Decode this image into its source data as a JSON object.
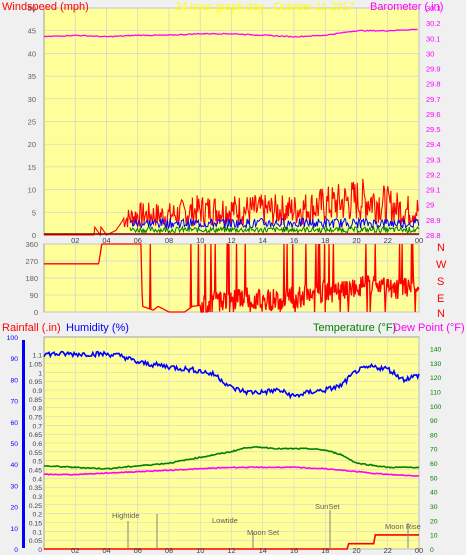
{
  "colors": {
    "windspeed": "#ff0000",
    "barometer": "#ff00ff",
    "title": "#ffff00",
    "direction": "#ff0000",
    "rainfall": "#ff0000",
    "humidity": "#0000ff",
    "temperature": "#008000",
    "dewpoint": "#ff00ff",
    "plot_bg": "#ffff99",
    "grid": "#d2d2d2",
    "panel_bg": "#f0f0f0",
    "gust_blue": "#0000ff",
    "avg_green": "#008000"
  },
  "chart_data": [
    {
      "type": "line",
      "title": "24 hour graph day : October 11 2017",
      "ylabel": "Windspeed (mph)",
      "y2label": "Barometer (.in)",
      "ylim": [
        0,
        50
      ],
      "y2lim": [
        28.8,
        30.3
      ],
      "yticks": [
        "0",
        "5",
        "10",
        "15",
        "20",
        "25",
        "30",
        "35",
        "40",
        "45",
        "50"
      ],
      "y2ticks": [
        "28.8",
        "28.9",
        "29",
        "29.1",
        "29.2",
        "29.3",
        "29.4",
        "29.5",
        "29.6",
        "29.7",
        "29.8",
        "29.9",
        "30",
        "30.1",
        "30.2",
        "30.3"
      ],
      "xticks": [
        "02",
        "04",
        "06",
        "08",
        "10",
        "12",
        "14",
        "16",
        "18",
        "20",
        "22",
        "00"
      ],
      "grid": true,
      "series": [
        {
          "name": "Windspeed (mph)",
          "x": [
            0,
            3.2,
            3.2,
            3.6,
            3.6,
            4,
            4,
            4.6,
            5,
            6,
            8,
            10,
            12,
            14,
            16,
            18,
            20,
            21,
            22,
            23,
            24
          ],
          "values": [
            0,
            0,
            2,
            0,
            2,
            0,
            0,
            1,
            3,
            4,
            4,
            5,
            5,
            5,
            5,
            6,
            7,
            7,
            6,
            5,
            5
          ]
        },
        {
          "name": "Barometer (.in)",
          "x": [
            0,
            2,
            4,
            6,
            8,
            10,
            12,
            14,
            16,
            18,
            20,
            22,
            24
          ],
          "values": [
            30.11,
            30.12,
            30.11,
            30.12,
            30.12,
            30.13,
            30.13,
            30.12,
            30.11,
            30.12,
            30.15,
            30.15,
            30.16
          ]
        }
      ]
    },
    {
      "type": "scatter",
      "ylabel_right": [
        "N",
        "W",
        "S",
        "E",
        "N"
      ],
      "ylim": [
        0,
        360
      ],
      "yticks": [
        "0",
        "90",
        "180",
        "270",
        "360"
      ],
      "xticks": [
        "02",
        "04",
        "06",
        "08",
        "10",
        "12",
        "14",
        "16",
        "18",
        "20",
        "22",
        "00"
      ],
      "series": [
        {
          "name": "Wind direction",
          "x": [
            0,
            3.5,
            3.7,
            6.2,
            6.3,
            7,
            7.3,
            8,
            9,
            9.5,
            10.5,
            11,
            12,
            13,
            14,
            15,
            16,
            17,
            18,
            19,
            20,
            21,
            22,
            23,
            24
          ],
          "values": [
            255,
            255,
            360,
            360,
            30,
            10,
            30,
            0,
            0,
            30,
            40,
            60,
            70,
            80,
            60,
            70,
            80,
            90,
            110,
            100,
            130,
            140,
            120,
            130,
            140
          ]
        }
      ]
    },
    {
      "type": "line",
      "ylabel": "Rainfall (.in)",
      "ylabel2": "Humidity (%)",
      "y3label": "Temperature (°F)",
      "y4label": "Dew Point (°F)",
      "annotations": [
        "Hightide",
        "Lowtide",
        "Moon Set",
        "SunSet",
        "Moon Rise"
      ],
      "rain_ylim": [
        0,
        1.2
      ],
      "rain_ticks": [
        "0",
        "0.05",
        "0.1",
        "0.15",
        "0.2",
        "0.25",
        "0.3",
        "0.35",
        "0.4",
        "0.45",
        "0.5",
        "0.55",
        "0.6",
        "0.65",
        "0.7",
        "0.75",
        "0.8",
        "0.85",
        "0.9",
        "0.95",
        "1",
        "1.05",
        "1.1"
      ],
      "hum_ylim": [
        0,
        100
      ],
      "hum_ticks": [
        "0",
        "10",
        "20",
        "30",
        "40",
        "50",
        "60",
        "70",
        "80",
        "90",
        "100"
      ],
      "temp_ylim": [
        0,
        148
      ],
      "temp_ticks": [
        "0",
        "10",
        "20",
        "30",
        "40",
        "50",
        "60",
        "70",
        "80",
        "90",
        "100",
        "110",
        "120",
        "130",
        "140"
      ],
      "xticks": [
        "02",
        "04",
        "06",
        "08",
        "10",
        "12",
        "14",
        "16",
        "18",
        "20",
        "22",
        "00"
      ],
      "grid": true,
      "series": [
        {
          "name": "Humidity (%)",
          "axis": "hum",
          "x": [
            0,
            2,
            4,
            5,
            6,
            8,
            10,
            11,
            12,
            13,
            14,
            15,
            16,
            17,
            18,
            19,
            20,
            21,
            22,
            23,
            24
          ],
          "values": [
            92,
            92,
            92,
            91,
            88,
            86,
            84,
            82,
            76,
            74,
            74,
            75,
            72,
            74,
            75,
            77,
            84,
            86,
            85,
            80,
            82
          ]
        },
        {
          "name": "Temperature (°F)",
          "axis": "temp",
          "x": [
            0,
            2,
            4,
            6,
            8,
            10,
            12,
            13,
            14,
            15,
            16,
            17,
            18,
            19,
            20,
            22,
            24
          ],
          "values": [
            58,
            57,
            56,
            58,
            60,
            64,
            68,
            71,
            71,
            70,
            70,
            70,
            69,
            66,
            60,
            57,
            57
          ]
        },
        {
          "name": "Dew Point (°F)",
          "axis": "temp",
          "x": [
            0,
            2,
            4,
            6,
            8,
            10,
            12,
            14,
            16,
            18,
            20,
            22,
            24
          ],
          "values": [
            52,
            52,
            53,
            54,
            55,
            56,
            57,
            57,
            57,
            56,
            54,
            52,
            51
          ]
        },
        {
          "name": "Rainfall (.in)",
          "axis": "rain",
          "x": [
            0,
            19.4,
            19.5,
            21.1,
            21.2,
            24
          ],
          "values": [
            0,
            0,
            0.03,
            0.03,
            0.08,
            0.08
          ]
        }
      ]
    }
  ]
}
